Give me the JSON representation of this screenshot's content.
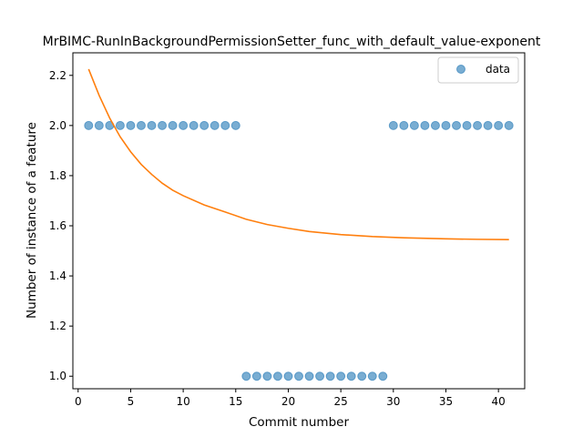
{
  "chart_data": {
    "type": "scatter",
    "title": "MrBIMC-RunInBackgroundPermissionSetter_func_with_default_value-exponent",
    "xlabel": "Commit number",
    "ylabel": "Number of instance of a feature",
    "xlim": [
      -0.5,
      42.5
    ],
    "ylim": [
      0.95,
      2.29
    ],
    "xticks": [
      0,
      5,
      10,
      15,
      20,
      25,
      30,
      35,
      40
    ],
    "yticks": [
      1.0,
      1.2,
      1.4,
      1.6,
      1.8,
      2.0,
      2.2
    ],
    "ytick_labels": [
      "1.0",
      "1.2",
      "1.4",
      "1.6",
      "1.8",
      "2.0",
      "2.2"
    ],
    "grid": false,
    "legend": {
      "position": "top-right",
      "entries": [
        "data"
      ]
    },
    "series": [
      {
        "name": "data",
        "kind": "scatter",
        "color": "#1f77b4",
        "x": [
          1,
          2,
          3,
          4,
          5,
          6,
          7,
          8,
          9,
          10,
          11,
          12,
          13,
          14,
          15,
          16,
          17,
          18,
          19,
          20,
          21,
          22,
          23,
          24,
          25,
          26,
          27,
          28,
          29,
          30,
          31,
          32,
          33,
          34,
          35,
          36,
          37,
          38,
          39,
          40,
          41
        ],
        "y": [
          2,
          2,
          2,
          2,
          2,
          2,
          2,
          2,
          2,
          2,
          2,
          2,
          2,
          2,
          2,
          1,
          1,
          1,
          1,
          1,
          1,
          1,
          1,
          1,
          1,
          1,
          1,
          1,
          1,
          2,
          2,
          2,
          2,
          2,
          2,
          2,
          2,
          2,
          2,
          2,
          2
        ]
      },
      {
        "kind": "line",
        "color": "#ff7f0e",
        "x": [
          1,
          2,
          3,
          4,
          5,
          6,
          7,
          8,
          9,
          10,
          12,
          14,
          16,
          18,
          20,
          22,
          25,
          28,
          31,
          35,
          38,
          41
        ],
        "y": [
          2.225,
          2.12,
          2.03,
          1.955,
          1.895,
          1.845,
          1.805,
          1.77,
          1.742,
          1.72,
          1.683,
          1.655,
          1.626,
          1.605,
          1.59,
          1.577,
          1.565,
          1.557,
          1.552,
          1.548,
          1.546,
          1.545
        ]
      }
    ]
  }
}
